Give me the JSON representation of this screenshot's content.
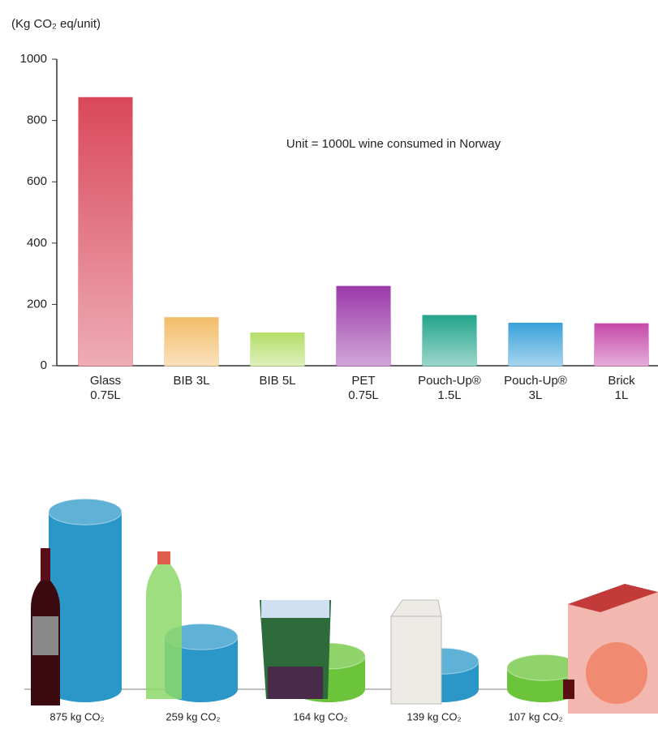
{
  "chart_data": [
    {
      "type": "bar",
      "y_label": "(Kg CO₂ eq/unit)",
      "annotation": "Unit = 1000L wine consumed in Norway",
      "categories": [
        "Glass\n0.75L",
        "BIB 3L",
        "BIB 5L",
        "PET\n0.75L",
        "Pouch-Up®\n1.5L",
        "Pouch-Up®\n3L",
        "Brick\n1L"
      ],
      "values": [
        875,
        157,
        107,
        259,
        164,
        139,
        137
      ],
      "colors": [
        "#d9485a",
        "#f3bd6a",
        "#b5de6a",
        "#9b3aab",
        "#23a58c",
        "#3aa1da",
        "#c64aa9"
      ],
      "ylim": [
        0,
        1000
      ],
      "yticks": [
        0,
        200,
        400,
        600,
        800,
        1000
      ]
    },
    {
      "type": "cylinder",
      "values": [
        875,
        259,
        164,
        139,
        107
      ],
      "value_labels": [
        "875 kg CO₂",
        "259 kg CO₂",
        "164 kg CO₂",
        "139 kg CO₂",
        "107 kg CO₂"
      ],
      "colors": [
        "#2b97c9",
        "#2b97c9",
        "#6cc43a",
        "#2b97c9",
        "#6cc43a"
      ]
    }
  ]
}
